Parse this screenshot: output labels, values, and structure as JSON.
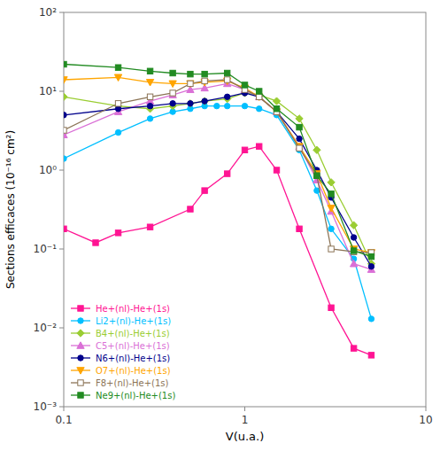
{
  "chart_data": {
    "type": "line",
    "xlabel": "V(u.a.)",
    "ylabel": "Sections efficaces (10⁻¹⁶ cm²)",
    "log": true,
    "grid": false,
    "legend": "lower-left",
    "line_style": "solid",
    "xlim": [
      0.1,
      10
    ],
    "ylim": [
      0.001,
      100
    ],
    "xticks": [
      0.1,
      1,
      10
    ],
    "yticks": [
      {
        "value": 0.001,
        "label": "10⁻³"
      },
      {
        "value": 0.01,
        "label": "10⁻²"
      },
      {
        "value": 0.1,
        "label": "10⁻¹"
      },
      {
        "value": 1,
        "label": "10⁰"
      },
      {
        "value": 10,
        "label": "10¹"
      },
      {
        "value": 100,
        "label": "10²"
      }
    ],
    "series": [
      {
        "name": "He+(nl)-He+(1s)",
        "color": "#FF1493",
        "marker": "square",
        "x": [
          0.1,
          0.15,
          0.2,
          0.3,
          0.5,
          0.6,
          0.8,
          1.0,
          1.2,
          1.5,
          2.0,
          3.0,
          4.0,
          5.0
        ],
        "values": [
          0.18,
          0.12,
          0.16,
          0.19,
          0.32,
          0.55,
          0.9,
          1.8,
          2.0,
          1.0,
          0.18,
          0.018,
          0.0055,
          0.0045
        ]
      },
      {
        "name": "Li2+(nl)-He+(1s)",
        "color": "#00BFFF",
        "marker": "circle",
        "x": [
          0.1,
          0.2,
          0.3,
          0.4,
          0.5,
          0.6,
          0.7,
          0.8,
          1.0,
          1.2,
          1.5,
          2.0,
          2.5,
          3.0,
          4.0,
          5.0
        ],
        "values": [
          1.4,
          3.0,
          4.5,
          5.5,
          6.0,
          6.5,
          6.5,
          6.5,
          6.5,
          6.0,
          5.0,
          1.8,
          0.55,
          0.18,
          0.075,
          0.013
        ]
      },
      {
        "name": "B4+(nl)-He+(1s)",
        "color": "#9ACD32",
        "marker": "diamond",
        "x": [
          0.1,
          0.2,
          0.3,
          0.4,
          0.5,
          0.6,
          0.8,
          1.0,
          1.2,
          1.5,
          2.0,
          2.5,
          3.0,
          4.0,
          5.0
        ],
        "values": [
          8.5,
          6.5,
          6.0,
          6.5,
          7.0,
          7.5,
          8.0,
          9.5,
          9.0,
          7.5,
          4.5,
          1.8,
          0.7,
          0.2,
          0.065
        ]
      },
      {
        "name": "C5+(nl)-He+(1s)",
        "color": "#DA70D6",
        "marker": "triangle-up",
        "x": [
          0.1,
          0.2,
          0.3,
          0.4,
          0.5,
          0.6,
          0.8,
          1.0,
          1.2,
          1.5,
          2.0,
          2.5,
          3.0,
          4.0,
          5.0
        ],
        "values": [
          2.8,
          5.5,
          7.5,
          9.0,
          10.5,
          11.0,
          12.5,
          10.5,
          8.5,
          5.5,
          2.0,
          0.75,
          0.3,
          0.065,
          0.055
        ]
      },
      {
        "name": "N6+(nl)-He+(1s)",
        "color": "#00008B",
        "marker": "circle",
        "x": [
          0.1,
          0.2,
          0.3,
          0.4,
          0.5,
          0.6,
          0.8,
          1.0,
          1.2,
          1.5,
          2.0,
          2.5,
          3.0,
          4.0,
          5.0
        ],
        "values": [
          5.0,
          6.0,
          6.5,
          7.0,
          7.0,
          7.5,
          8.5,
          9.5,
          8.5,
          5.5,
          2.5,
          1.0,
          0.45,
          0.14,
          0.06
        ]
      },
      {
        "name": "O7+(nl)-He+(1s)",
        "color": "#FFA500",
        "marker": "triangle-down",
        "x": [
          0.1,
          0.2,
          0.3,
          0.4,
          0.5,
          0.6,
          0.8,
          1.0,
          1.2,
          1.5,
          2.0,
          2.5,
          3.0,
          4.0,
          5.0
        ],
        "values": [
          14.0,
          15.0,
          13.0,
          12.5,
          12.5,
          13.0,
          13.5,
          11.0,
          8.5,
          5.5,
          2.0,
          0.9,
          0.33,
          0.1,
          0.09
        ]
      },
      {
        "name": "F8+(nl)-He+(1s)",
        "color": "#8B7355",
        "marker": "square-open",
        "x": [
          0.1,
          0.2,
          0.3,
          0.4,
          0.5,
          0.6,
          0.8,
          1.0,
          1.2,
          1.5,
          2.0,
          2.5,
          3.0,
          4.0,
          5.0
        ],
        "values": [
          3.2,
          7.0,
          8.5,
          9.5,
          12.5,
          13.5,
          14.0,
          10.5,
          8.5,
          5.5,
          1.9,
          0.85,
          0.1,
          0.092,
          0.09
        ]
      },
      {
        "name": "Ne9+(nl)-He+(1s)",
        "color": "#228B22",
        "marker": "square",
        "x": [
          0.1,
          0.2,
          0.3,
          0.4,
          0.5,
          0.6,
          0.8,
          1.0,
          1.2,
          1.5,
          2.0,
          2.5,
          3.0,
          4.0,
          5.0
        ],
        "values": [
          22.0,
          20.0,
          18.0,
          17.0,
          16.5,
          16.5,
          17.0,
          12.0,
          10.0,
          6.0,
          3.5,
          0.85,
          0.5,
          0.095,
          0.08
        ]
      }
    ]
  }
}
